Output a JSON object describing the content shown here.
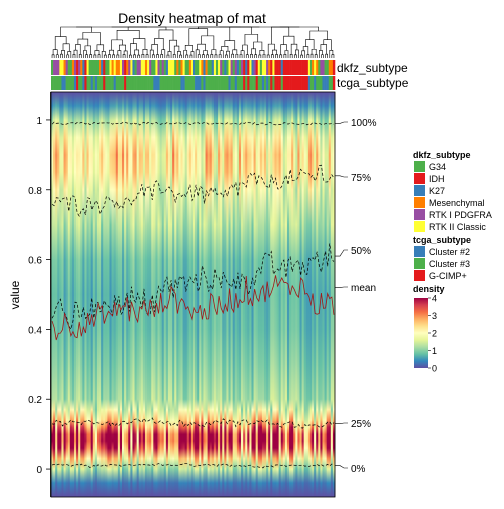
{
  "chart_data": {
    "type": "heatmap",
    "title": "Density heatmap of mat",
    "ylabel": "value",
    "xlabel": "",
    "ylim": [
      -0.08,
      1.08
    ],
    "y_ticks": [
      0,
      0.2,
      0.4,
      0.6,
      0.8,
      1
    ],
    "y_tick_labels": [
      "0",
      "0.2",
      "0.4",
      "0.6",
      "0.8",
      "1"
    ],
    "n_columns": 136,
    "annotation_tracks": [
      {
        "name": "dkfz_subtype",
        "legend_title": "dkfz_subtype",
        "levels": [
          {
            "label": "G34",
            "color": "#4DAF4A"
          },
          {
            "label": "IDH",
            "color": "#E41A1C"
          },
          {
            "label": "K27",
            "color": "#377EB8"
          },
          {
            "label": "Mesenchymal",
            "color": "#FF7F00"
          },
          {
            "label": "RTK I PDGFRA",
            "color": "#984EA3"
          },
          {
            "label": "RTK II Classic",
            "color": "#FFFF33"
          }
        ]
      },
      {
        "name": "tcga_subtype",
        "legend_title": "tcga_subtype",
        "levels": [
          {
            "label": "Cluster #2",
            "color": "#377EB8"
          },
          {
            "label": "Cluster #3",
            "color": "#4DAF4A"
          },
          {
            "label": "G-CIMP+",
            "color": "#E41A1C"
          }
        ]
      }
    ],
    "density_legend": {
      "title": "density",
      "breaks": [
        0,
        1,
        2,
        3,
        4
      ],
      "labels": [
        "0",
        "1",
        "2",
        "3",
        "4"
      ],
      "colors": [
        "#5E4FA2",
        "#3288BD",
        "#66C2A5",
        "#ABDDA4",
        "#E6F598",
        "#FFFFBF",
        "#FEE08B",
        "#FDAE61",
        "#F46D43",
        "#D53E4F",
        "#9E0142"
      ]
    },
    "quantile_lines": [
      {
        "label": "100%",
        "value": 0.99
      },
      {
        "label": "75%",
        "value": 0.84
      },
      {
        "label": "50%",
        "value": 0.61
      },
      {
        "label": "mean",
        "value": 0.52
      },
      {
        "label": "25%",
        "value": 0.13
      },
      {
        "label": "0%",
        "value": 0.01
      }
    ],
    "typical_column_density": {
      "rows_y": [
        -0.08,
        -0.04,
        0,
        0.03,
        0.06,
        0.08,
        0.1,
        0.12,
        0.14,
        0.17,
        0.2,
        0.3,
        0.4,
        0.5,
        0.6,
        0.7,
        0.8,
        0.85,
        0.9,
        0.95,
        1,
        1.04,
        1.08
      ],
      "density": [
        0.0,
        0.3,
        1.2,
        2.2,
        3.2,
        3.6,
        3.5,
        2.8,
        2.2,
        1.6,
        1.1,
        0.9,
        0.75,
        0.7,
        0.8,
        1.2,
        1.8,
        2.2,
        2.3,
        2.0,
        1.3,
        0.5,
        0.0
      ]
    }
  }
}
